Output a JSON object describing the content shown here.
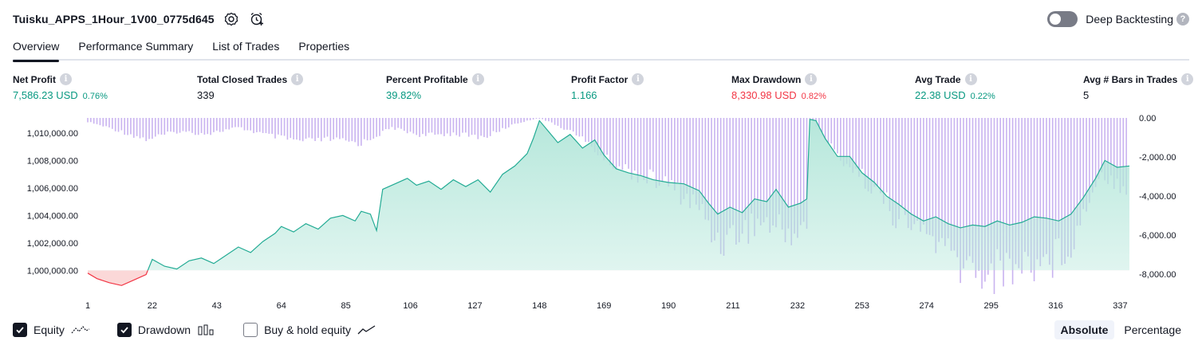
{
  "header": {
    "strategy_title": "Tuisku_APPS_1Hour_1V00_0775d645",
    "deep_backtesting_label": "Deep Backtesting",
    "deep_backtesting_on": false
  },
  "tabs": [
    {
      "label": "Overview",
      "active": true
    },
    {
      "label": "Performance Summary",
      "active": false
    },
    {
      "label": "List of Trades",
      "active": false
    },
    {
      "label": "Properties",
      "active": false
    }
  ],
  "metrics": [
    {
      "label": "Net Profit",
      "value": "7,586.23 USD",
      "pct": "0.76%",
      "tone": "pos"
    },
    {
      "label": "Total Closed Trades",
      "value": "339",
      "pct": "",
      "tone": "neu"
    },
    {
      "label": "Percent Profitable",
      "value": "39.82%",
      "pct": "",
      "tone": "pos"
    },
    {
      "label": "Profit Factor",
      "value": "1.166",
      "pct": "",
      "tone": "pos"
    },
    {
      "label": "Max Drawdown",
      "value": "8,330.98 USD",
      "pct": "0.82%",
      "tone": "neg"
    },
    {
      "label": "Avg Trade",
      "value": "22.38 USD",
      "pct": "0.22%",
      "tone": "pos"
    },
    {
      "label": "Avg # Bars in Trades",
      "value": "5",
      "pct": "",
      "tone": "neu"
    }
  ],
  "chart_data": {
    "type": "area",
    "x_ticks": [
      1,
      22,
      43,
      64,
      85,
      106,
      127,
      148,
      169,
      190,
      211,
      232,
      253,
      274,
      295,
      316,
      337
    ],
    "xlim": [
      1,
      340
    ],
    "y_left_ticks": [
      "1,000,000.00",
      "1,002,000.00",
      "1,004,000.00",
      "1,006,000.00",
      "1,008,000.00",
      "1,010,000.00"
    ],
    "y_left_range": [
      998800,
      1011100
    ],
    "y_right_ticks": [
      "0.00",
      "-2,000.00",
      "-4,000.00",
      "-6,000.00",
      "-8,000.00"
    ],
    "y_right_range": [
      -8400,
      0
    ],
    "baseline": 1000000,
    "series": [
      {
        "name": "Equity",
        "kind": "area",
        "points": [
          [
            1,
            999800
          ],
          [
            4,
            999400
          ],
          [
            8,
            999100
          ],
          [
            12,
            998900
          ],
          [
            16,
            999300
          ],
          [
            20,
            999700
          ],
          [
            22,
            1000800
          ],
          [
            26,
            1000300
          ],
          [
            30,
            1000100
          ],
          [
            34,
            1000700
          ],
          [
            38,
            1000900
          ],
          [
            42,
            1000500
          ],
          [
            46,
            1001100
          ],
          [
            50,
            1001700
          ],
          [
            54,
            1001300
          ],
          [
            58,
            1002100
          ],
          [
            62,
            1002700
          ],
          [
            64,
            1003200
          ],
          [
            68,
            1002800
          ],
          [
            72,
            1003400
          ],
          [
            76,
            1003000
          ],
          [
            80,
            1003800
          ],
          [
            84,
            1004000
          ],
          [
            88,
            1003600
          ],
          [
            90,
            1004300
          ],
          [
            93,
            1004100
          ],
          [
            95,
            1002900
          ],
          [
            97,
            1005900
          ],
          [
            101,
            1006300
          ],
          [
            105,
            1006700
          ],
          [
            108,
            1006200
          ],
          [
            112,
            1006500
          ],
          [
            116,
            1005900
          ],
          [
            120,
            1006600
          ],
          [
            124,
            1006100
          ],
          [
            128,
            1006600
          ],
          [
            132,
            1005700
          ],
          [
            136,
            1007000
          ],
          [
            140,
            1007600
          ],
          [
            144,
            1008500
          ],
          [
            146,
            1009600
          ],
          [
            148,
            1010900
          ],
          [
            151,
            1010100
          ],
          [
            154,
            1009300
          ],
          [
            158,
            1009900
          ],
          [
            162,
            1008900
          ],
          [
            166,
            1009500
          ],
          [
            169,
            1008400
          ],
          [
            173,
            1007400
          ],
          [
            177,
            1007100
          ],
          [
            181,
            1006900
          ],
          [
            185,
            1006600
          ],
          [
            190,
            1006400
          ],
          [
            195,
            1006300
          ],
          [
            200,
            1005800
          ],
          [
            203,
            1004900
          ],
          [
            206,
            1004100
          ],
          [
            210,
            1004600
          ],
          [
            214,
            1004200
          ],
          [
            218,
            1005200
          ],
          [
            222,
            1005000
          ],
          [
            225,
            1005900
          ],
          [
            229,
            1004600
          ],
          [
            233,
            1004900
          ],
          [
            235,
            1005200
          ],
          [
            236,
            1011000
          ],
          [
            238,
            1010900
          ],
          [
            241,
            1009600
          ],
          [
            245,
            1008300
          ],
          [
            249,
            1008300
          ],
          [
            253,
            1007100
          ],
          [
            257,
            1006400
          ],
          [
            261,
            1005400
          ],
          [
            265,
            1004800
          ],
          [
            269,
            1004100
          ],
          [
            273,
            1003600
          ],
          [
            277,
            1003900
          ],
          [
            281,
            1003400
          ],
          [
            285,
            1003100
          ],
          [
            289,
            1003300
          ],
          [
            293,
            1003200
          ],
          [
            297,
            1003600
          ],
          [
            301,
            1003300
          ],
          [
            305,
            1003500
          ],
          [
            309,
            1003900
          ],
          [
            313,
            1003800
          ],
          [
            317,
            1003600
          ],
          [
            321,
            1004100
          ],
          [
            325,
            1005300
          ],
          [
            329,
            1006700
          ],
          [
            332,
            1008000
          ],
          [
            336,
            1007500
          ],
          [
            340,
            1007600
          ]
        ]
      },
      {
        "name": "Drawdown",
        "kind": "bars",
        "points": [
          [
            1,
            -200
          ],
          [
            10,
            -600
          ],
          [
            20,
            -1100
          ],
          [
            30,
            -700
          ],
          [
            40,
            -800
          ],
          [
            50,
            -500
          ],
          [
            60,
            -900
          ],
          [
            70,
            -1200
          ],
          [
            80,
            -1100
          ],
          [
            90,
            -1300
          ],
          [
            100,
            -500
          ],
          [
            110,
            -900
          ],
          [
            120,
            -800
          ],
          [
            130,
            -1000
          ],
          [
            140,
            -300
          ],
          [
            148,
            0
          ],
          [
            160,
            -800
          ],
          [
            170,
            -2200
          ],
          [
            180,
            -2900
          ],
          [
            190,
            -3400
          ],
          [
            200,
            -4600
          ],
          [
            206,
            -6300
          ],
          [
            211,
            -6000
          ],
          [
            220,
            -5300
          ],
          [
            230,
            -5900
          ],
          [
            235,
            -5500
          ],
          [
            236,
            0
          ],
          [
            245,
            -1900
          ],
          [
            255,
            -3300
          ],
          [
            265,
            -5200
          ],
          [
            275,
            -6000
          ],
          [
            285,
            -7600
          ],
          [
            295,
            -7900
          ],
          [
            305,
            -7500
          ],
          [
            315,
            -7200
          ],
          [
            322,
            -6200
          ],
          [
            330,
            -2800
          ],
          [
            340,
            -3600
          ]
        ]
      }
    ],
    "legend": [
      {
        "name": "Equity",
        "checked": true
      },
      {
        "name": "Drawdown",
        "checked": true
      },
      {
        "name": "Buy & hold equity",
        "checked": false
      }
    ],
    "scale_modes": [
      {
        "label": "Absolute",
        "active": true
      },
      {
        "label": "Percentage",
        "active": false
      }
    ]
  },
  "colors": {
    "positive": "#089981",
    "negative": "#f23645",
    "equity_line": "#22ab94",
    "equity_fill": "#b2e6d9",
    "under_fill": "#f7a9a9",
    "drawdown_bar": "#c9b3f0"
  }
}
